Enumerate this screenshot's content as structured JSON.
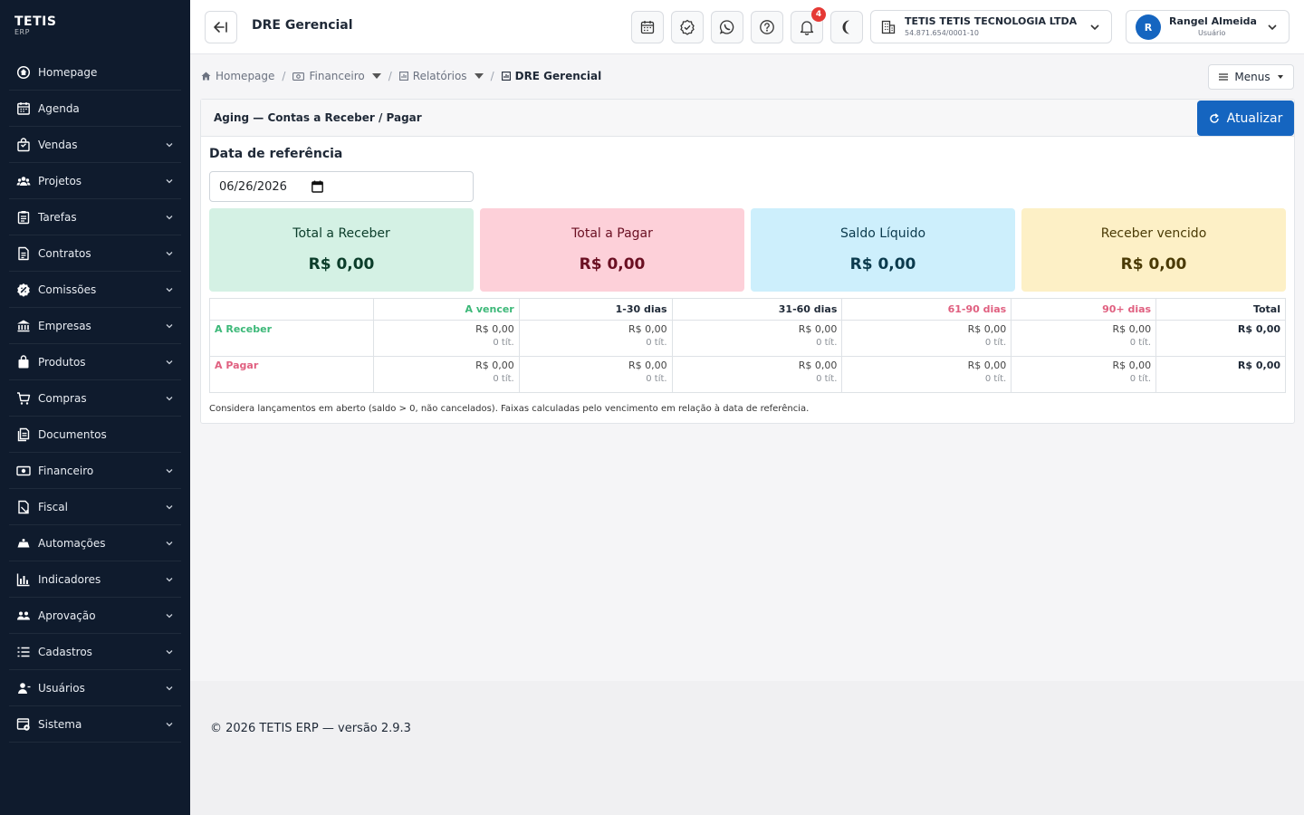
{
  "brand": {
    "name": "TETIS",
    "sub": "ERP"
  },
  "sidebar": {
    "items": [
      {
        "label": "Homepage",
        "icon": "home-icon",
        "has_children": false
      },
      {
        "label": "Agenda",
        "icon": "calendar-icon",
        "has_children": false
      },
      {
        "label": "Vendas",
        "icon": "bag-icon",
        "has_children": true
      },
      {
        "label": "Projetos",
        "icon": "team-icon",
        "has_children": true
      },
      {
        "label": "Tarefas",
        "icon": "clipboard-icon",
        "has_children": true
      },
      {
        "label": "Contratos",
        "icon": "document-icon",
        "has_children": true
      },
      {
        "label": "Comissões",
        "icon": "badge-icon",
        "has_children": true
      },
      {
        "label": "Empresas",
        "icon": "bank-icon",
        "has_children": true
      },
      {
        "label": "Produtos",
        "icon": "box-icon",
        "has_children": true
      },
      {
        "label": "Compras",
        "icon": "cart-icon",
        "has_children": true
      },
      {
        "label": "Documentos",
        "icon": "files-icon",
        "has_children": false
      },
      {
        "label": "Financeiro",
        "icon": "cash-icon",
        "has_children": true
      },
      {
        "label": "Fiscal",
        "icon": "receipt-icon",
        "has_children": true
      },
      {
        "label": "Automações",
        "icon": "robot-icon",
        "has_children": true
      },
      {
        "label": "Indicadores",
        "icon": "bar-chart-icon",
        "has_children": true
      },
      {
        "label": "Aprovação",
        "icon": "people-icon",
        "has_children": true
      },
      {
        "label": "Cadastros",
        "icon": "list-icon",
        "has_children": true
      },
      {
        "label": "Usuários",
        "icon": "user-icon",
        "has_children": true
      },
      {
        "label": "Sistema",
        "icon": "settings-icon",
        "has_children": true
      }
    ]
  },
  "topbar": {
    "title": "DRE Gerencial",
    "notifications_count": "4",
    "company": {
      "name": "TETIS TETIS TECNOLOGIA LTDA",
      "cnpj": "54.871.654/0001-10"
    },
    "user": {
      "initial": "R",
      "name": "Rangel Almeida",
      "role": "Usuário"
    }
  },
  "breadcrumb": {
    "home": "Homepage",
    "financeiro": "Financeiro",
    "relatorios": "Relatórios",
    "current": "DRE Gerencial",
    "sep": "/"
  },
  "menus_button": "Menus",
  "card": {
    "title": "Aging — Contas a Receber / Pagar",
    "refresh_label": "Atualizar",
    "ref_label": "Data de referência",
    "ref_date": "06/26/2026"
  },
  "stats": [
    {
      "label": "Total a Receber",
      "value": "R$ 0,00",
      "bg": "#d4f1e4",
      "fg": "#0b3d2a"
    },
    {
      "label": "Total a Pagar",
      "value": "R$ 0,00",
      "bg": "#fdd0d9",
      "fg": "#6a0f22"
    },
    {
      "label": "Saldo Líquido",
      "value": "R$ 0,00",
      "bg": "#cdeffc",
      "fg": "#0b3a4d"
    },
    {
      "label": "Receber vencido",
      "value": "R$ 0,00",
      "bg": "#fdf0c6",
      "fg": "#4a3a05"
    }
  ],
  "table": {
    "headers": [
      "",
      "A vencer",
      "1-30 dias",
      "31-60 dias",
      "61-90 dias",
      "90+ dias",
      "Total"
    ],
    "header_colors": [
      "#1f2937",
      "#3cb878",
      "#1f2937",
      "#1f2937",
      "#e06080",
      "#e06080",
      "#1f2937"
    ],
    "rows": [
      {
        "label": "A Receber",
        "label_color": "#3cb878",
        "cells": [
          {
            "amount": "R$ 0,00",
            "count": "0 tít."
          },
          {
            "amount": "R$ 0,00",
            "count": "0 tít."
          },
          {
            "amount": "R$ 0,00",
            "count": "0 tít."
          },
          {
            "amount": "R$ 0,00",
            "count": "0 tít."
          },
          {
            "amount": "R$ 0,00",
            "count": "0 tít."
          }
        ],
        "total": "R$ 0,00"
      },
      {
        "label": "A Pagar",
        "label_color": "#e06080",
        "cells": [
          {
            "amount": "R$ 0,00",
            "count": "0 tít."
          },
          {
            "amount": "R$ 0,00",
            "count": "0 tít."
          },
          {
            "amount": "R$ 0,00",
            "count": "0 tít."
          },
          {
            "amount": "R$ 0,00",
            "count": "0 tít."
          },
          {
            "amount": "R$ 0,00",
            "count": "0 tít."
          }
        ],
        "total": "R$ 0,00"
      }
    ]
  },
  "note": "Considera lançamentos em aberto (saldo > 0, não cancelados). Faixas calculadas pelo vencimento em relação à data de referência.",
  "footer": "© 2026 TETIS ERP — versão 2.9.3",
  "colors": {
    "sidebar_bg": "#0f1b2d",
    "primary": "#1565c0",
    "danger": "#e53935"
  }
}
